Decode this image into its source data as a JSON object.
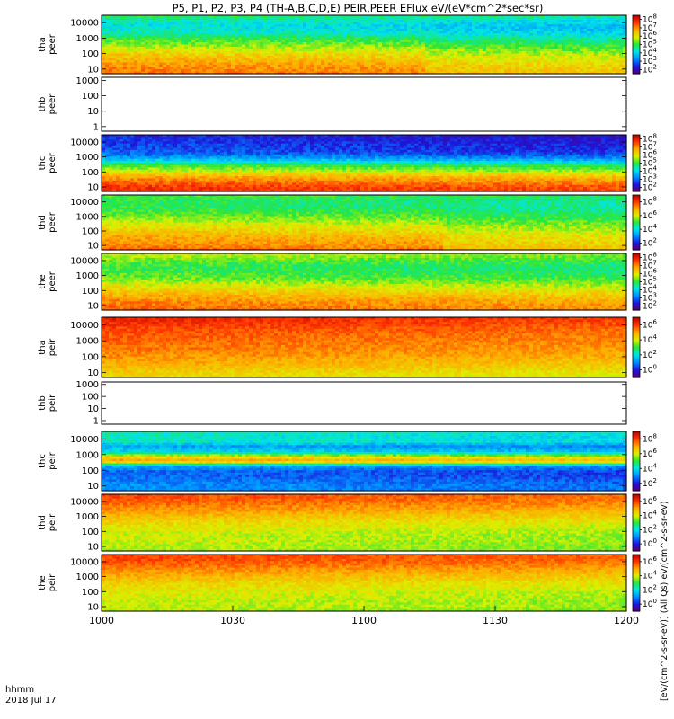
{
  "title": "P5, P1, P2, P3, P4 (TH-A,B,C,D,E) PEIR,PEER EFlux eV/(eV*cm^2*sec*sr)",
  "x_axis": {
    "ticks": [
      "1000",
      "1030",
      "1100",
      "1130",
      "1200"
    ],
    "corner_label_line1": "hhmm",
    "corner_label_line2": "2018 Jul 17"
  },
  "colorbar_axis_label": "[eV/(cm^2-s-sr-eV)] (All Qs) eV/(cm^2-s-sr-eV)",
  "chart_data": {
    "type": "heatmap",
    "x_range_hhmm": [
      "1000",
      "1200"
    ],
    "panels": [
      {
        "id": "tha_peer",
        "label": [
          "tha",
          "peer"
        ],
        "has_data": true,
        "y_ticks": [
          "10",
          "100",
          "1000",
          "10000"
        ],
        "y_log_range": [
          5,
          30000
        ],
        "colorbar_ticks": [
          "10^2",
          "10^3",
          "10^4",
          "10^5",
          "10^6",
          "10^7",
          "10^8"
        ],
        "colorbar_log_range": [
          1.5,
          8.5
        ],
        "profile_log_eflux": [
          7.2,
          7.1,
          6.9,
          6.6,
          6.3,
          5.9,
          5.5,
          5.1,
          4.6,
          4.3,
          4.2,
          4.5,
          5.0
        ],
        "front_fraction": 0.62
      },
      {
        "id": "thb_peer",
        "label": [
          "thb",
          "peer"
        ],
        "has_data": false,
        "y_ticks": [
          "1",
          "10",
          "100",
          "1000"
        ],
        "y_log_range": [
          0.5,
          1600
        ]
      },
      {
        "id": "thc_peer",
        "label": [
          "thc",
          "peer"
        ],
        "has_data": true,
        "y_ticks": [
          "10",
          "100",
          "1000",
          "10000"
        ],
        "y_log_range": [
          5,
          30000
        ],
        "colorbar_ticks": [
          "10^2",
          "10^3",
          "10^4",
          "10^5",
          "10^6",
          "10^7",
          "10^8"
        ],
        "colorbar_log_range": [
          1.5,
          8.5
        ],
        "profile_log_eflux": [
          7.9,
          7.7,
          7.3,
          6.8,
          6.1,
          5.4,
          4.6,
          3.6,
          3.0,
          2.8,
          2.7,
          2.6,
          2.5
        ],
        "front_fraction": 1.0
      },
      {
        "id": "thd_peer",
        "label": [
          "thd",
          "peer"
        ],
        "has_data": true,
        "y_ticks": [
          "10",
          "100",
          "1000",
          "10000"
        ],
        "y_log_range": [
          5,
          30000
        ],
        "colorbar_ticks": [
          "10^2",
          "10^4",
          "10^6",
          "10^8"
        ],
        "colorbar_log_range": [
          1.5,
          8.5
        ],
        "profile_log_eflux": [
          7.3,
          7.1,
          6.9,
          6.7,
          6.4,
          6.1,
          5.8,
          5.5,
          5.2,
          5.0,
          4.9,
          5.0,
          5.2
        ],
        "front_fraction": 0.65
      },
      {
        "id": "the_peer",
        "label": [
          "the",
          "peer"
        ],
        "has_data": true,
        "y_ticks": [
          "10",
          "100",
          "1000",
          "10000"
        ],
        "y_log_range": [
          5,
          30000
        ],
        "colorbar_ticks": [
          "10^2",
          "10^3",
          "10^4",
          "10^5",
          "10^6",
          "10^7",
          "10^8"
        ],
        "colorbar_log_range": [
          1.5,
          8.5
        ],
        "profile_log_eflux": [
          7.3,
          7.2,
          7.0,
          6.7,
          6.4,
          6.0,
          5.6,
          5.3,
          5.1,
          5.0,
          5.2,
          5.5,
          5.8
        ],
        "front_fraction": 1.0
      },
      {
        "id": "tha_peir",
        "label": [
          "tha",
          "peir"
        ],
        "has_data": true,
        "y_ticks": [
          "10",
          "100",
          "1000",
          "10000"
        ],
        "y_log_range": [
          5,
          30000
        ],
        "colorbar_ticks": [
          "10^0",
          "10^2",
          "10^4",
          "10^6"
        ],
        "colorbar_log_range": [
          -0.5,
          7.5
        ],
        "profile_log_eflux": [
          4.8,
          5.0,
          5.3,
          5.5,
          5.7,
          5.9,
          6.0,
          6.1,
          6.2,
          6.3,
          6.5,
          6.7,
          6.9
        ],
        "front_fraction": 1.0
      },
      {
        "id": "thb_peir",
        "label": [
          "thb",
          "peir"
        ],
        "has_data": false,
        "y_ticks": [
          "1",
          "10",
          "100",
          "1000"
        ],
        "y_log_range": [
          0.5,
          1600
        ]
      },
      {
        "id": "thc_peir",
        "label": [
          "thc",
          "peir"
        ],
        "has_data": true,
        "y_ticks": [
          "10",
          "100",
          "1000",
          "10000"
        ],
        "y_log_range": [
          5,
          30000
        ],
        "colorbar_ticks": [
          "10^2",
          "10^4",
          "10^6",
          "10^8"
        ],
        "colorbar_log_range": [
          1.0,
          8.5
        ],
        "profile_log_eflux": [
          3.0,
          3.0,
          2.8,
          2.6,
          2.6,
          3.3,
          6.9,
          5.6,
          3.7,
          3.2,
          4.1,
          4.0,
          4.2
        ],
        "front_fraction": 1.0
      },
      {
        "id": "thd_peir",
        "label": [
          "thd",
          "peir"
        ],
        "has_data": true,
        "y_ticks": [
          "10",
          "100",
          "1000",
          "10000"
        ],
        "y_log_range": [
          5,
          30000
        ],
        "colorbar_ticks": [
          "10^0",
          "10^2",
          "10^4",
          "10^6"
        ],
        "colorbar_log_range": [
          -0.5,
          7.5
        ],
        "profile_log_eflux": [
          4.3,
          4.3,
          4.4,
          4.4,
          4.5,
          4.7,
          4.9,
          5.2,
          5.5,
          5.8,
          6.1,
          6.3,
          6.4
        ],
        "front_fraction": 1.0
      },
      {
        "id": "the_peir",
        "label": [
          "the",
          "peir"
        ],
        "has_data": true,
        "y_ticks": [
          "10",
          "100",
          "1000",
          "10000"
        ],
        "y_log_range": [
          5,
          30000
        ],
        "colorbar_ticks": [
          "10^0",
          "10^2",
          "10^4",
          "10^6"
        ],
        "colorbar_log_range": [
          -0.5,
          7.5
        ],
        "profile_log_eflux": [
          4.3,
          4.4,
          4.4,
          4.5,
          4.6,
          4.8,
          5.0,
          5.3,
          5.6,
          5.9,
          6.2,
          6.4,
          6.5
        ],
        "front_fraction": 1.0
      }
    ]
  }
}
